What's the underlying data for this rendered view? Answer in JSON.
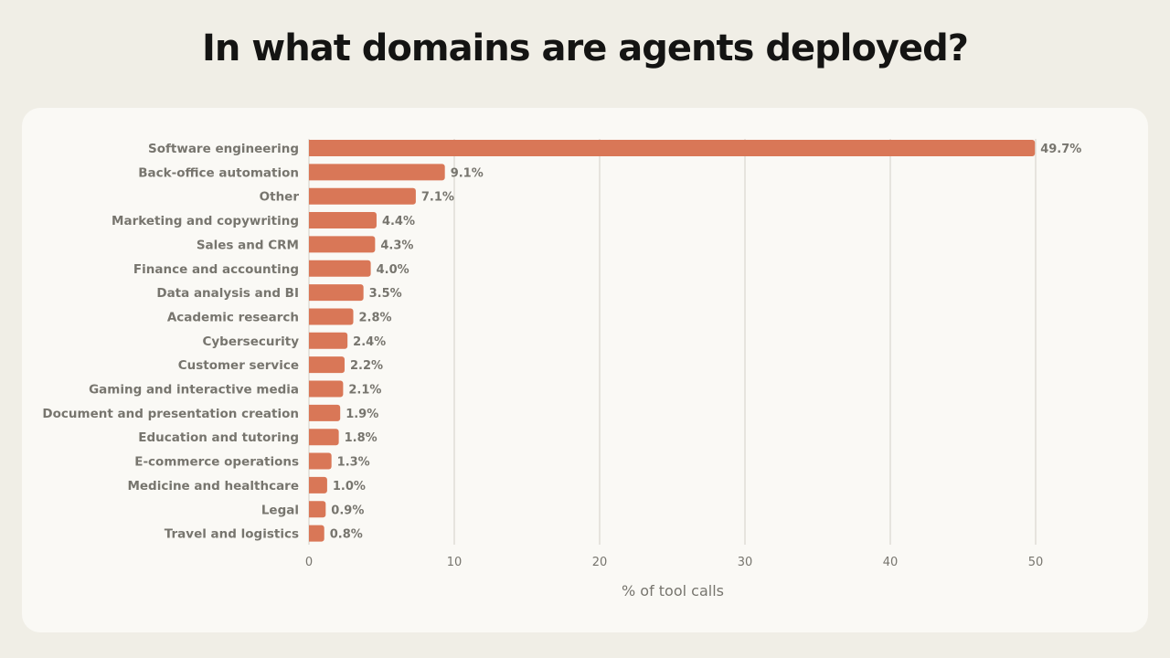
{
  "chart_data": {
    "type": "bar",
    "orientation": "horizontal",
    "title": "In what domains are agents deployed?",
    "xlabel": "% of tool calls",
    "ylabel": "",
    "xlim": [
      0,
      50
    ],
    "xticks": [
      0,
      10,
      20,
      30,
      40,
      50
    ],
    "grid": "vertical",
    "bar_color": "#d97757",
    "categories": [
      "Software engineering",
      "Back-office automation",
      "Other",
      "Marketing and copywriting",
      "Sales and CRM",
      "Finance and accounting",
      "Data analysis and BI",
      "Academic research",
      "Cybersecurity",
      "Customer service",
      "Gaming and interactive media",
      "Document and presentation creation",
      "Education and tutoring",
      "E-commerce operations",
      "Medicine and healthcare",
      "Legal",
      "Travel and logistics"
    ],
    "values": [
      49.7,
      9.1,
      7.1,
      4.4,
      4.3,
      4.0,
      3.5,
      2.8,
      2.4,
      2.2,
      2.1,
      1.9,
      1.8,
      1.3,
      1.0,
      0.9,
      0.8
    ],
    "value_labels": [
      "49.7%",
      "9.1%",
      "7.1%",
      "4.4%",
      "4.3%",
      "4.0%",
      "3.5%",
      "2.8%",
      "2.4%",
      "2.2%",
      "2.1%",
      "1.9%",
      "1.8%",
      "1.3%",
      "1.0%",
      "0.9%",
      "0.8%"
    ]
  }
}
